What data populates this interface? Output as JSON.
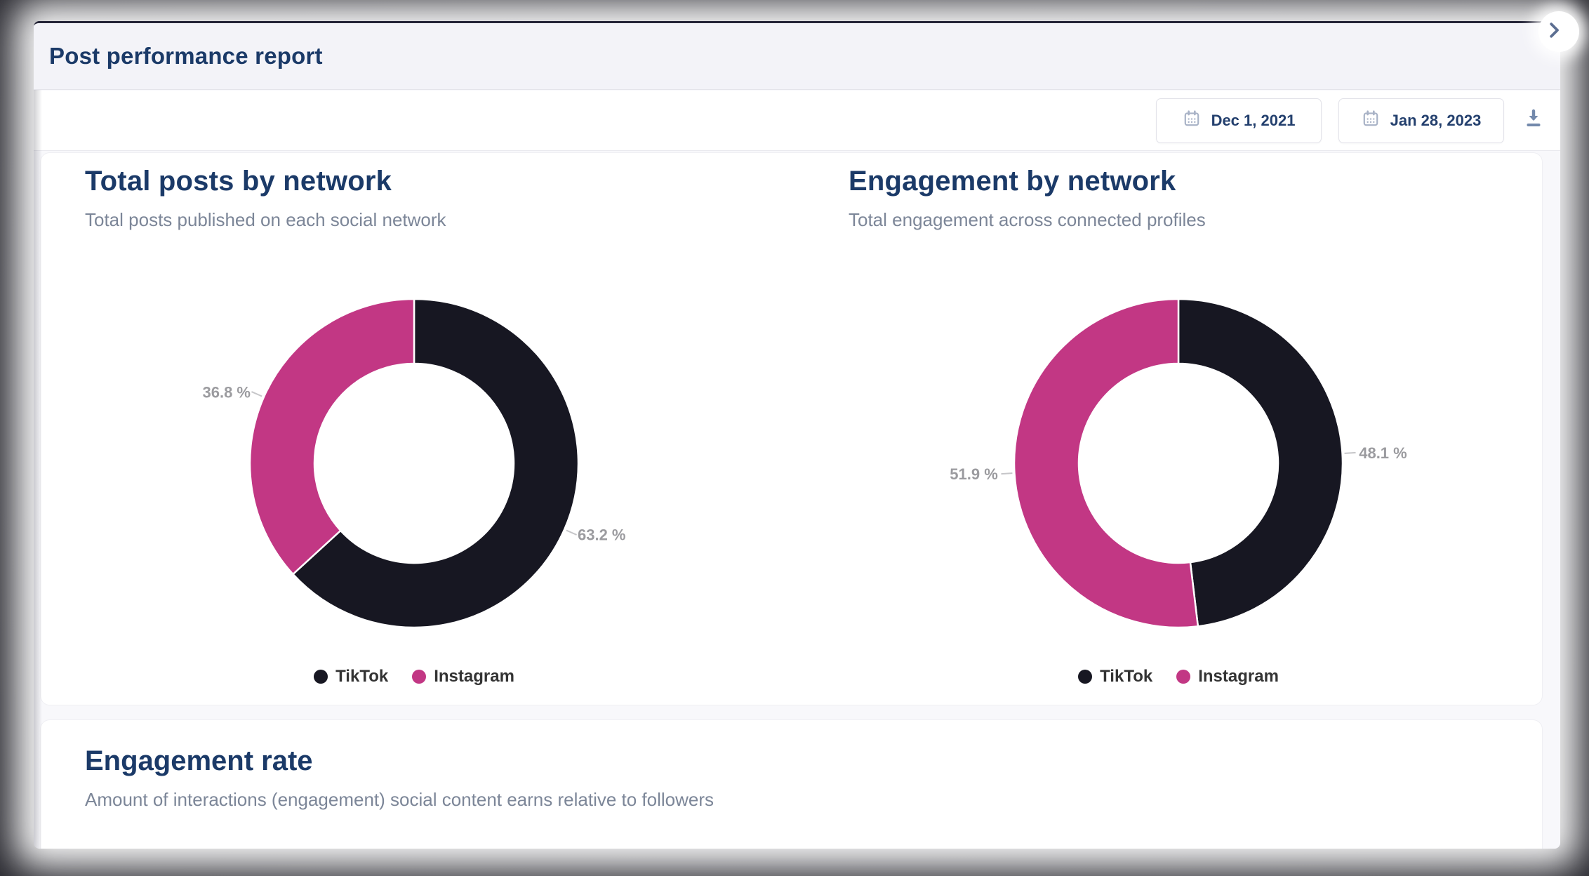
{
  "window": {
    "title": "Post performance report"
  },
  "toolbar": {
    "date_from": {
      "label": "Dec 1, 2021",
      "icon": "calendar-icon"
    },
    "date_to": {
      "label": "Jan 28, 2023",
      "icon": "calendar-icon"
    },
    "download_icon": "download-icon"
  },
  "colors": {
    "tiktok": "#171722",
    "instagram": "#c23784",
    "heading_navy": "#1b3a68",
    "subtitle_gray": "#7c8698",
    "pct_label_gray": "#9b9b9f",
    "backdrop_dark": "#2b2b35"
  },
  "chart_data": [
    {
      "type": "pie",
      "subtype": "donut",
      "title": "Total posts by network",
      "subtitle": "Total posts published on each social network",
      "start_angle": 0,
      "legend_position": "bottom",
      "slices": [
        {
          "name": "TikTok",
          "percent": 63.2,
          "label": "63.2 %",
          "color": "#171722"
        },
        {
          "name": "Instagram",
          "percent": 36.8,
          "label": "36.8 %",
          "color": "#c23784"
        }
      ]
    },
    {
      "type": "pie",
      "subtype": "donut",
      "title": "Engagement by network",
      "subtitle": "Total engagement across connected profiles",
      "start_angle": 0,
      "legend_position": "bottom",
      "slices": [
        {
          "name": "TikTok",
          "percent": 48.1,
          "label": "48.1 %",
          "color": "#171722"
        },
        {
          "name": "Instagram",
          "percent": 51.9,
          "label": "51.9 %",
          "color": "#c23784"
        }
      ]
    }
  ],
  "sections": [
    {
      "title": "Engagement rate",
      "subtitle": "Amount of interactions (engagement) social content earns relative to followers"
    }
  ]
}
